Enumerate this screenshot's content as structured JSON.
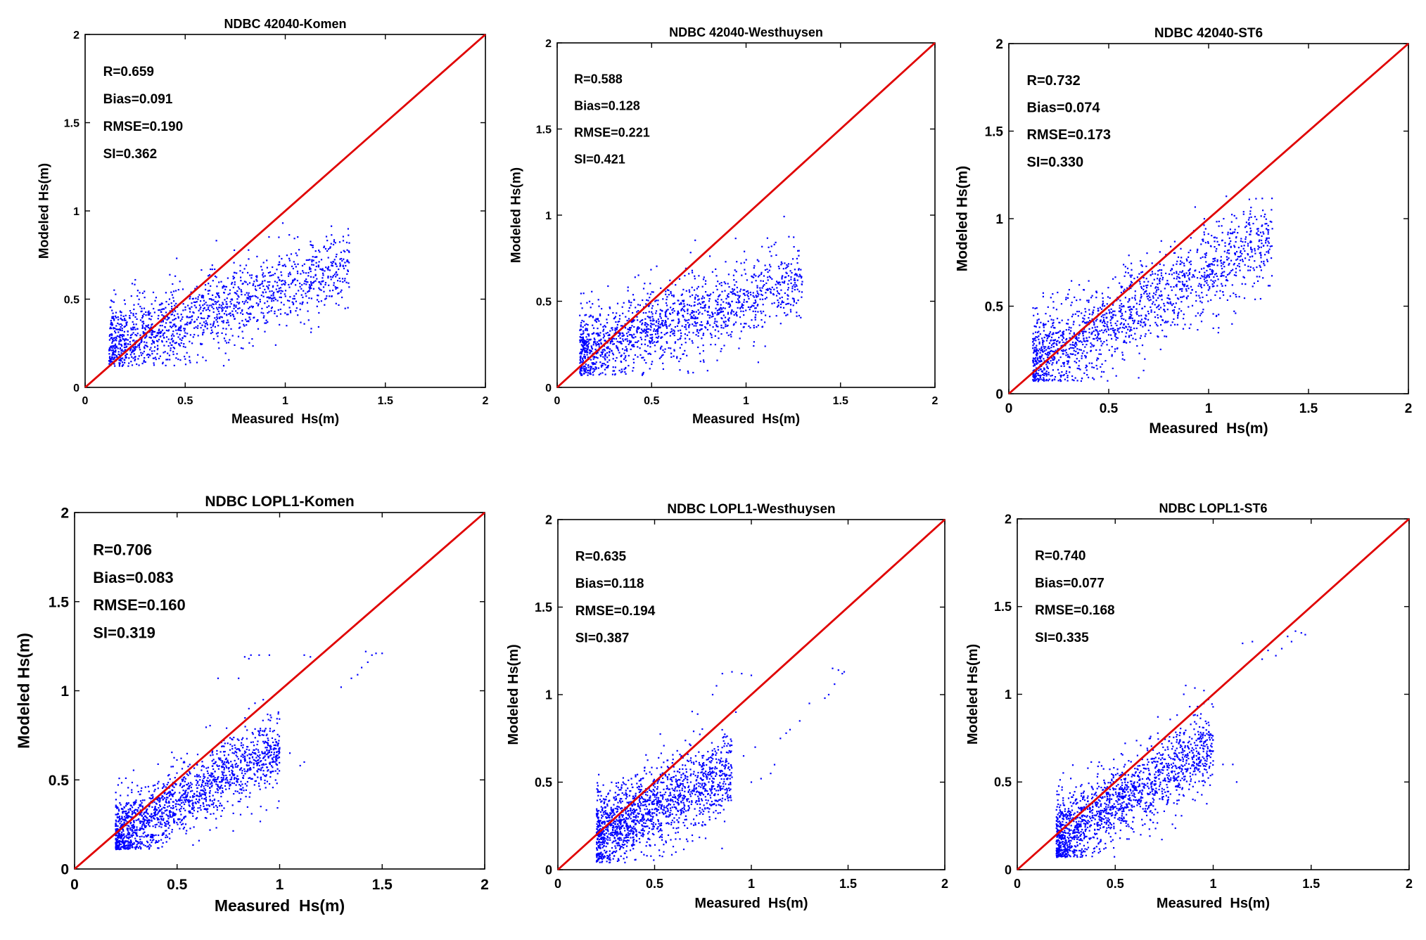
{
  "figure": {
    "colors": {
      "scatter": "#0000ff",
      "line": "#e00000",
      "axes": "#000000",
      "background": "#ffffff"
    }
  },
  "chart_data": [
    {
      "type": "scatter",
      "id": "p1",
      "title": "NDBC 42040-Komen",
      "xlabel": "Measured  Hs(m)",
      "ylabel": "Modeled Hs(m)",
      "xlim": [
        0,
        2
      ],
      "ylim": [
        0,
        2
      ],
      "xticks": [
        "0",
        "0.5",
        "1",
        "1.5",
        "2"
      ],
      "yticks": [
        "0",
        "0.5",
        "1",
        "1.5",
        "2"
      ],
      "stats": [
        "R=0.659",
        "Bias=0.091",
        "RMSE=0.190",
        "SI=0.362"
      ],
      "reference_line": {
        "label": "1:1",
        "x": [
          0,
          2
        ],
        "y": [
          0,
          2
        ]
      },
      "cloud": {
        "n": 1500,
        "seed": 11,
        "x_range": [
          0.12,
          1.32
        ],
        "slope": 0.38,
        "intercept": 0.19,
        "spread": 0.12,
        "y_min": 0.12,
        "upper_bias": 0.0
      }
    },
    {
      "type": "scatter",
      "id": "p2",
      "title": "NDBC 42040-Westhuysen",
      "xlabel": "Measured  Hs(m)",
      "ylabel": "Modeled Hs(m)",
      "xlim": [
        0,
        2
      ],
      "ylim": [
        0,
        2
      ],
      "xticks": [
        "0",
        "0.5",
        "1",
        "1.5",
        "2"
      ],
      "yticks": [
        "0",
        "0.5",
        "1",
        "1.5",
        "2"
      ],
      "stats": [
        "R=0.588",
        "Bias=0.128",
        "RMSE=0.221",
        "SI=0.421"
      ],
      "reference_line": {
        "label": "1:1",
        "x": [
          0,
          2
        ],
        "y": [
          0,
          2
        ]
      },
      "cloud": {
        "n": 1500,
        "seed": 23,
        "x_range": [
          0.12,
          1.3
        ],
        "slope": 0.34,
        "intercept": 0.17,
        "spread": 0.13,
        "y_min": 0.07,
        "upper_bias": 0.0
      }
    },
    {
      "type": "scatter",
      "id": "p3",
      "title": "NDBC 42040-ST6",
      "xlabel": "Measured  Hs(m)",
      "ylabel": "Modeled Hs(m)",
      "xlim": [
        0,
        2
      ],
      "ylim": [
        0,
        2
      ],
      "xticks": [
        "0",
        "0.5",
        "1",
        "1.5",
        "2"
      ],
      "yticks": [
        "0",
        "0.5",
        "1",
        "1.5",
        "2"
      ],
      "stats": [
        "R=0.732",
        "Bias=0.074",
        "RMSE=0.173",
        "SI=0.330"
      ],
      "reference_line": {
        "label": "1:1",
        "x": [
          0,
          2
        ],
        "y": [
          0,
          2
        ]
      },
      "cloud": {
        "n": 1600,
        "seed": 37,
        "x_range": [
          0.12,
          1.32
        ],
        "slope": 0.58,
        "intercept": 0.12,
        "spread": 0.14,
        "y_min": 0.07,
        "upper_bias": 0.0
      }
    },
    {
      "type": "scatter",
      "id": "p4",
      "title": "NDBC LOPL1-Komen",
      "xlabel": "Measured  Hs(m)",
      "ylabel": "Modeled Hs(m)",
      "xlim": [
        0,
        2
      ],
      "ylim": [
        0,
        2
      ],
      "xticks": [
        "0",
        "0.5",
        "1",
        "1.5",
        "2"
      ],
      "yticks": [
        "0",
        "0.5",
        "1",
        "1.5",
        "2"
      ],
      "stats": [
        "R=0.706",
        "Bias=0.083",
        "RMSE=0.160",
        "SI=0.319"
      ],
      "reference_line": {
        "label": "1:1",
        "x": [
          0,
          2
        ],
        "y": [
          0,
          2
        ]
      },
      "cloud": {
        "n": 1600,
        "seed": 41,
        "x_range": [
          0.2,
          1.0
        ],
        "slope": 0.62,
        "intercept": 0.06,
        "spread": 0.11,
        "y_min": 0.11,
        "upper_bias": 0.0
      },
      "outliers": [
        [
          1.12,
          1.2
        ],
        [
          1.15,
          1.19
        ],
        [
          0.95,
          1.2
        ],
        [
          0.9,
          1.2
        ],
        [
          1.42,
          1.22
        ],
        [
          1.45,
          1.2
        ],
        [
          1.47,
          1.21
        ],
        [
          1.4,
          1.13
        ],
        [
          1.43,
          1.16
        ],
        [
          0.85,
          1.18
        ],
        [
          0.83,
          1.19
        ],
        [
          0.8,
          1.07
        ],
        [
          1.1,
          0.58
        ],
        [
          1.12,
          0.6
        ],
        [
          1.0,
          0.68
        ],
        [
          1.05,
          0.65
        ],
        [
          1.3,
          1.02
        ],
        [
          1.35,
          1.07
        ],
        [
          1.38,
          1.09
        ],
        [
          0.85,
          0.9
        ],
        [
          0.88,
          0.93
        ],
        [
          0.92,
          0.95
        ],
        [
          0.86,
          1.2
        ],
        [
          1.5,
          1.21
        ],
        [
          0.7,
          1.07
        ],
        [
          0.98,
          0.55
        ]
      ]
    },
    {
      "type": "scatter",
      "id": "p5",
      "title": "NDBC LOPL1-Westhuysen",
      "xlabel": "Measured  Hs(m)",
      "ylabel": "Modeled Hs(m)",
      "xlim": [
        0,
        2
      ],
      "ylim": [
        0,
        2
      ],
      "xticks": [
        "0",
        "0.5",
        "1",
        "1.5",
        "2"
      ],
      "yticks": [
        "0",
        "0.5",
        "1",
        "1.5",
        "2"
      ],
      "stats": [
        "R=0.635",
        "Bias=0.118",
        "RMSE=0.194",
        "SI=0.387"
      ],
      "reference_line": {
        "label": "1:1",
        "x": [
          0,
          2
        ],
        "y": [
          0,
          2
        ]
      },
      "cloud": {
        "n": 1600,
        "seed": 53,
        "x_range": [
          0.2,
          0.9
        ],
        "slope": 0.55,
        "intercept": 0.08,
        "spread": 0.13,
        "y_min": 0.04,
        "upper_bias": 0.0
      },
      "outliers": [
        [
          1.42,
          1.15
        ],
        [
          1.45,
          1.14
        ],
        [
          1.47,
          1.12
        ],
        [
          1.4,
          1.0
        ],
        [
          1.43,
          1.06
        ],
        [
          0.9,
          1.13
        ],
        [
          0.95,
          1.12
        ],
        [
          1.0,
          1.11
        ],
        [
          0.8,
          1.0
        ],
        [
          0.82,
          1.05
        ],
        [
          1.1,
          0.55
        ],
        [
          1.12,
          0.6
        ],
        [
          1.05,
          0.52
        ],
        [
          1.0,
          0.5
        ],
        [
          1.15,
          0.75
        ],
        [
          1.2,
          0.8
        ],
        [
          1.18,
          0.78
        ],
        [
          1.25,
          0.85
        ],
        [
          0.92,
          0.9
        ],
        [
          0.96,
          0.65
        ],
        [
          1.02,
          0.7
        ],
        [
          1.38,
          0.98
        ],
        [
          1.3,
          0.95
        ],
        [
          0.88,
          0.72
        ],
        [
          0.85,
          1.12
        ],
        [
          1.48,
          1.13
        ]
      ]
    },
    {
      "type": "scatter",
      "id": "p6",
      "title": "NDBC LOPL1-ST6",
      "xlabel": "Measured  Hs(m)",
      "ylabel": "Modeled Hs(m)",
      "xlim": [
        0,
        2
      ],
      "ylim": [
        0,
        2
      ],
      "xticks": [
        "0",
        "0.5",
        "1",
        "1.5",
        "2"
      ],
      "yticks": [
        "0",
        "0.5",
        "1",
        "1.5",
        "2"
      ],
      "stats": [
        "R=0.740",
        "Bias=0.077",
        "RMSE=0.168",
        "SI=0.335"
      ],
      "reference_line": {
        "label": "1:1",
        "x": [
          0,
          2
        ],
        "y": [
          0,
          2
        ]
      },
      "cloud": {
        "n": 1600,
        "seed": 67,
        "x_range": [
          0.2,
          1.0
        ],
        "slope": 0.66,
        "intercept": 0.05,
        "spread": 0.12,
        "y_min": 0.07,
        "upper_bias": 0.0
      },
      "outliers": [
        [
          1.38,
          1.33
        ],
        [
          1.42,
          1.36
        ],
        [
          1.45,
          1.35
        ],
        [
          1.47,
          1.34
        ],
        [
          1.4,
          1.3
        ],
        [
          1.3,
          1.3
        ],
        [
          1.2,
          1.3
        ],
        [
          1.15,
          1.29
        ],
        [
          1.1,
          0.6
        ],
        [
          1.12,
          0.5
        ],
        [
          1.0,
          0.62
        ],
        [
          1.05,
          0.6
        ],
        [
          0.95,
          0.48
        ],
        [
          0.98,
          0.58
        ],
        [
          1.25,
          1.2
        ],
        [
          1.28,
          1.25
        ],
        [
          0.9,
          0.88
        ],
        [
          0.92,
          0.93
        ],
        [
          0.85,
          1.0
        ],
        [
          0.86,
          1.05
        ],
        [
          1.32,
          1.22
        ],
        [
          1.35,
          1.26
        ]
      ]
    }
  ]
}
